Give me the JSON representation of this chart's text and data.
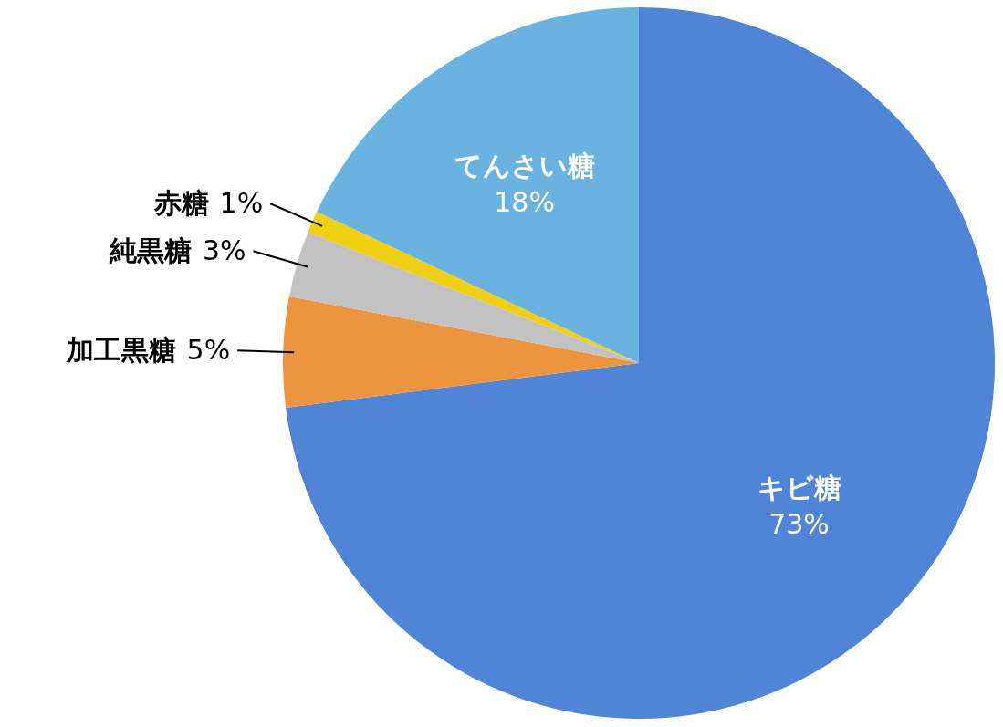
{
  "chart_data": {
    "type": "pie",
    "categories": [
      "キビ糖",
      "加工黒糖",
      "純黒糖",
      "赤糖",
      "てんさい糖"
    ],
    "values": [
      73,
      5,
      3,
      1,
      18
    ],
    "value_labels": [
      "73%",
      "5%",
      "3%",
      "1%",
      "18%"
    ],
    "colors": [
      "#5084d6",
      "#ed943e",
      "#c2c2c2",
      "#f0d013",
      "#6ab3e0"
    ]
  }
}
